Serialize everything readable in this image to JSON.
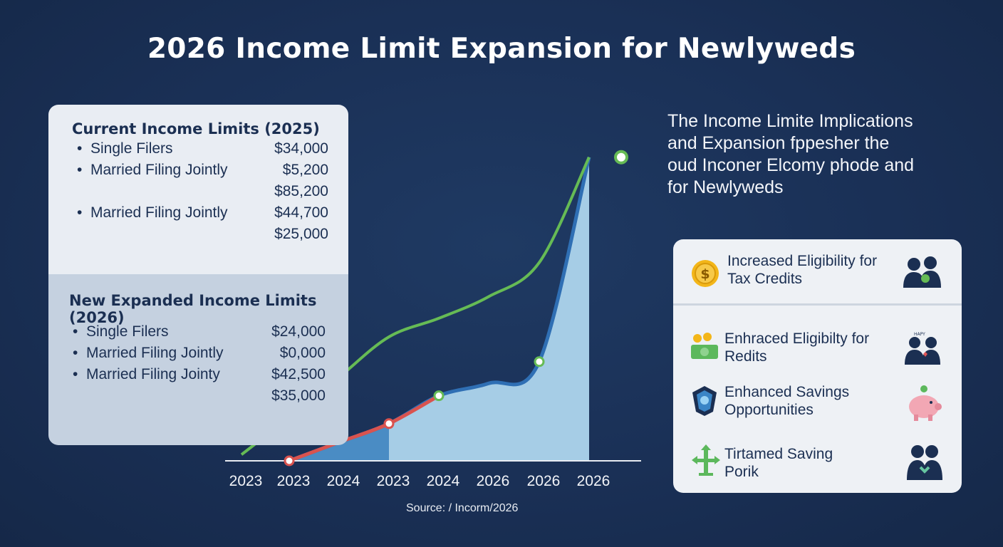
{
  "title": "2026 Income Limit Expansion for Newlyweds",
  "current_limits": {
    "heading": "Current Income Limits (2025)",
    "bullet": "•",
    "rows": [
      {
        "label": "Single Filers",
        "amount": "$34,000"
      },
      {
        "label": "Married Filing Jointly",
        "amount": "$5,200"
      },
      {
        "label": "",
        "amount": "$85,200"
      },
      {
        "label": "Married Filing Jointly",
        "amount": "$44,700"
      },
      {
        "label": "",
        "amount": "$25,000"
      }
    ]
  },
  "new_limits": {
    "heading": "New Expanded Income Limits (2026)",
    "bullet": "•",
    "rows": [
      {
        "label": "Single Filers",
        "amount": "$24,000"
      },
      {
        "label": "Married Filing Jointly",
        "amount": "$0,000"
      },
      {
        "label": "Married Filing Jointy",
        "amount": "$42,500"
      },
      {
        "label": "",
        "amount": "$35,000"
      }
    ]
  },
  "description": [
    "The Income Limite Implications",
    " and Expansion fppesher the",
    " oud Inconer Elcomy phode and",
    "for Newlyweds"
  ],
  "benefits": [
    {
      "line1": "Increased Eligibility for",
      "line2": "Tax Credits",
      "icon_left": "dollar-coin-icon",
      "icon_right": "couple-icon"
    },
    {
      "line1": "Enhraced Eligibilty for",
      "line2": "Redits",
      "icon_left": "money-coins-icon",
      "icon_right": "happy-couple-icon"
    },
    {
      "line1": "Enhanced Savings",
      "line2": "Opportunities",
      "icon_left": "shield-icon",
      "icon_right": "piggy-bank-icon"
    },
    {
      "line1": "Tirtamed Saving",
      "line2": "Porik",
      "icon_left": "directions-icon",
      "icon_right": "couple-heart-icon"
    }
  ],
  "source": "Source: / Incorm/2026",
  "chart_data": {
    "type": "line",
    "categories": [
      "2023",
      "2023",
      "2024",
      "2023",
      "2024",
      "2026",
      "2026",
      "2026"
    ],
    "series": [
      {
        "color": "#66bb55",
        "values": [
          2,
          14,
          27,
          40,
          46,
          53,
          64,
          98
        ]
      },
      {
        "color": "#d9534f",
        "values": [
          null,
          0,
          6,
          12,
          21,
          null,
          null,
          null
        ]
      },
      {
        "color": "#2f6fb4",
        "values": [
          null,
          0,
          6,
          12,
          21,
          25,
          32,
          98
        ]
      }
    ],
    "ylim": [
      0,
      100
    ],
    "colors": {
      "green": "#66bb55",
      "red": "#d9534f",
      "blue": "#2f6fb4",
      "fill_light": "#a6cde6",
      "fill_dark": "#4a8cc4"
    }
  }
}
